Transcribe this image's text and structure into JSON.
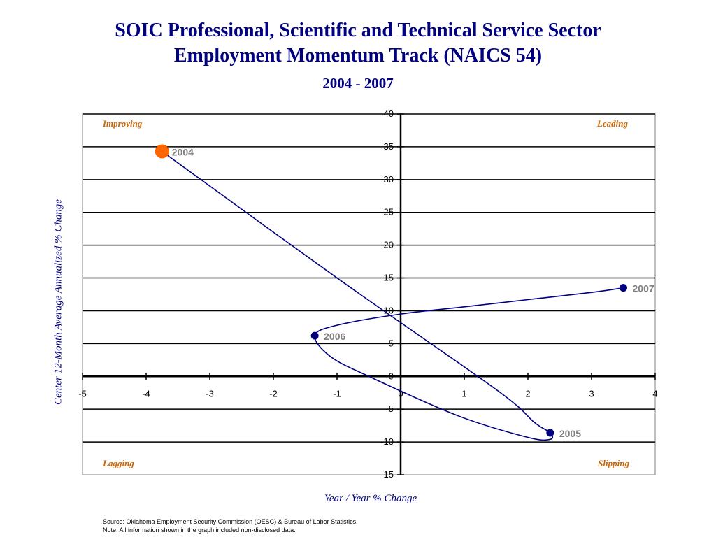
{
  "chart_data": {
    "type": "line",
    "title": "SOIC Professional, Scientific and Technical Service Sector",
    "title_line2": "Employment Momentum Track (NAICS 54)",
    "subtitle": "2004 - 2007",
    "xlabel": "Year / Year % Change",
    "ylabel": "Center 12-Month Average Annualized %  Change",
    "xlim": [
      -5,
      4
    ],
    "ylim": [
      -15,
      40
    ],
    "x_ticks": [
      "-5",
      "-4",
      "-3",
      "-2",
      "-1",
      "0",
      "1",
      "2",
      "3",
      "4"
    ],
    "y_ticks": [
      "40",
      "35",
      "30",
      "25",
      "20",
      "15",
      "10",
      "5",
      "0",
      "-5",
      "-10",
      "-15"
    ],
    "grid": "horizontal",
    "quadrant_labels": {
      "top_left": "Improving",
      "top_right": "Leading",
      "bottom_left": "Lagging",
      "bottom_right": "Slipping"
    },
    "points": [
      {
        "label": "2004",
        "x": -3.75,
        "y": 34.3
      },
      {
        "label": "2005",
        "x": 2.35,
        "y": -8.6
      },
      {
        "label": "2006",
        "x": -1.35,
        "y": 6.2
      },
      {
        "label": "2007",
        "x": 3.5,
        "y": 13.5
      }
    ],
    "path": [
      {
        "x": -3.75,
        "y": 34.3
      },
      {
        "x": -1.0,
        "y": 15.0
      },
      {
        "x": 1.5,
        "y": -2.0
      },
      {
        "x": 2.1,
        "y": -7.0
      },
      {
        "x": 2.35,
        "y": -8.6
      },
      {
        "x": 2.35,
        "y": -9.6
      },
      {
        "x": 2.0,
        "y": -9.3
      },
      {
        "x": 0.9,
        "y": -6.0
      },
      {
        "x": -0.5,
        "y": 0.0
      },
      {
        "x": -1.1,
        "y": 3.0
      },
      {
        "x": -1.35,
        "y": 6.2
      },
      {
        "x": -1.0,
        "y": 7.8
      },
      {
        "x": 0.0,
        "y": 9.5
      },
      {
        "x": 1.0,
        "y": 10.6
      },
      {
        "x": 2.0,
        "y": 11.7
      },
      {
        "x": 3.0,
        "y": 12.8
      },
      {
        "x": 3.5,
        "y": 13.5
      }
    ],
    "colors": {
      "line": "#000080",
      "point": "#000080",
      "start_point": "#FF6600",
      "point_label": "#808080",
      "quadrant_label": "#CC6600",
      "title": "#000080",
      "grid": "#000000"
    }
  },
  "footer": {
    "source": "Source:  Oklahoma Employment Security Commission (OESC) & Bureau of Labor Statistics",
    "note": "Note: All information shown in the graph included non-disclosed data."
  }
}
